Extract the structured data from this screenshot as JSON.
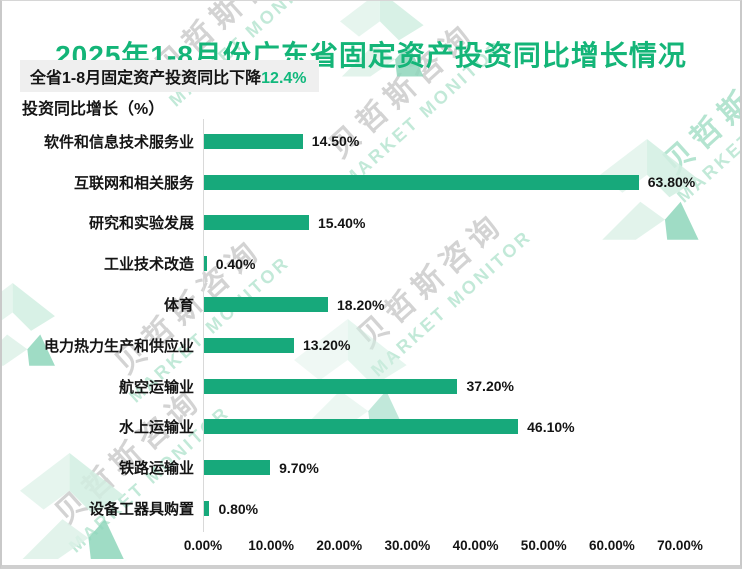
{
  "title": "2025年1-8月份广东省固定资产投资同比增长情况",
  "subtitle": {
    "text": "全省1-8月固定资产投资同比下降",
    "highlight": "12.4%"
  },
  "axis_title": "投资同比增长（%）",
  "watermark": {
    "cn": "贝哲斯咨询",
    "en": "MARKET MONITOR"
  },
  "colors": {
    "title_green": "#14b578",
    "highlight_green": "#10b87c",
    "bar_green": "#17a97b",
    "subtitle_bg": "#efefef",
    "watermark_gray": "#d3d3d3",
    "watermark_green": "#c2e9d8"
  },
  "chart_data": {
    "type": "bar",
    "orientation": "horizontal",
    "title": "2025年1-8月份广东省固定资产投资同比增长情况",
    "xlabel": "投资同比增长（%）",
    "ylabel": "",
    "xlim": [
      0,
      70
    ],
    "grid": false,
    "legend": false,
    "categories": [
      "软件和信息技术服务业",
      "互联网和相关服务",
      "研究和实验发展",
      "工业技术改造",
      "体育",
      "电力热力生产和供应业",
      "航空运输业",
      "水上运输业",
      "铁路运输业",
      "设备工器具购置"
    ],
    "values": [
      14.5,
      63.8,
      15.4,
      0.4,
      18.2,
      13.2,
      37.2,
      46.1,
      9.7,
      0.8
    ],
    "value_labels": [
      "14.50%",
      "63.80%",
      "15.40%",
      "0.40%",
      "18.20%",
      "13.20%",
      "37.20%",
      "46.10%",
      "9.70%",
      "0.80%"
    ],
    "x_tick_values": [
      0,
      10,
      20,
      30,
      40,
      50,
      60,
      70
    ],
    "x_tick_labels": [
      "0.00%",
      "10.00%",
      "20.00%",
      "30.00%",
      "40.00%",
      "50.00%",
      "60.00%",
      "70.00%"
    ]
  }
}
